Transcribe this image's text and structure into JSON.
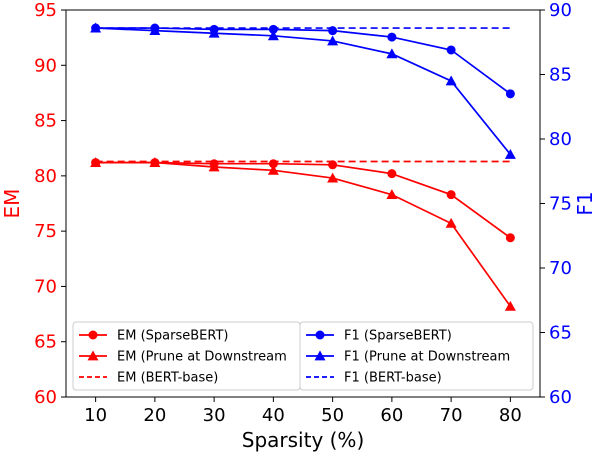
{
  "chart_data": {
    "type": "line",
    "x": [
      10,
      20,
      30,
      40,
      50,
      60,
      70,
      80
    ],
    "xlabel": "Sparsity (%)",
    "xlim": [
      5,
      85
    ],
    "y_left": {
      "label": "EM",
      "ylim": [
        60,
        95
      ],
      "ticks": [
        60,
        65,
        70,
        75,
        80,
        85,
        90,
        95
      ],
      "color": "#ff0000"
    },
    "y_right": {
      "label": "F1",
      "ylim": [
        60,
        90
      ],
      "ticks": [
        60,
        65,
        70,
        75,
        80,
        85,
        90
      ],
      "color": "#0000ff"
    },
    "series": [
      {
        "id": "em-sparsebert",
        "name": "EM (SparseBERT)",
        "axis": "left",
        "color": "#ff0000",
        "marker": "circle",
        "dash": false,
        "values": [
          81.2,
          81.2,
          81.1,
          81.1,
          81.0,
          80.2,
          78.3,
          74.4
        ]
      },
      {
        "id": "em-prune",
        "name": "EM (Prune at Downstream",
        "axis": "left",
        "color": "#ff0000",
        "marker": "triangle",
        "dash": false,
        "values": [
          81.2,
          81.2,
          80.8,
          80.5,
          79.8,
          78.3,
          75.7,
          68.2
        ]
      },
      {
        "id": "em-bertbase",
        "name": "EM (BERT-base)",
        "axis": "left",
        "color": "#ff0000",
        "marker": "none",
        "dash": true,
        "values": [
          81.3,
          81.3,
          81.3,
          81.3,
          81.3,
          81.3,
          81.3,
          81.3
        ]
      },
      {
        "id": "f1-sparsebert",
        "name": "F1 (SparseBERT)",
        "axis": "right",
        "color": "#0000ff",
        "marker": "circle",
        "dash": false,
        "values": [
          88.6,
          88.6,
          88.5,
          88.5,
          88.4,
          87.9,
          86.9,
          83.5
        ]
      },
      {
        "id": "f1-prune",
        "name": "F1 (Prune at Downstream",
        "axis": "right",
        "color": "#0000ff",
        "marker": "triangle",
        "dash": false,
        "values": [
          88.6,
          88.4,
          88.2,
          88.0,
          87.6,
          86.6,
          84.5,
          78.8
        ]
      },
      {
        "id": "f1-bertbase",
        "name": "F1 (BERT-base)",
        "axis": "right",
        "color": "#0000ff",
        "marker": "none",
        "dash": true,
        "values": [
          88.6,
          88.6,
          88.6,
          88.6,
          88.6,
          88.6,
          88.6,
          88.6
        ]
      }
    ],
    "legends": [
      {
        "placement": "lower-left",
        "entries": [
          "em-sparsebert",
          "em-prune",
          "em-bertbase"
        ]
      },
      {
        "placement": "lower-center-right",
        "entries": [
          "f1-sparsebert",
          "f1-prune",
          "f1-bertbase"
        ]
      }
    ]
  }
}
